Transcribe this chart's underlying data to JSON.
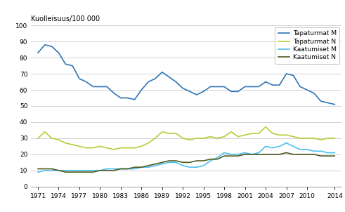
{
  "years": [
    1971,
    1972,
    1973,
    1974,
    1975,
    1976,
    1977,
    1978,
    1979,
    1980,
    1981,
    1982,
    1983,
    1984,
    1985,
    1986,
    1987,
    1988,
    1989,
    1990,
    1991,
    1992,
    1993,
    1994,
    1995,
    1996,
    1997,
    1998,
    1999,
    2000,
    2001,
    2002,
    2003,
    2004,
    2005,
    2006,
    2007,
    2008,
    2009,
    2010,
    2011,
    2012,
    2013,
    2014
  ],
  "tapaturmat_M": [
    83,
    88,
    87,
    83,
    76,
    75,
    67,
    65,
    62,
    62,
    62,
    58,
    55,
    55,
    54,
    60,
    65,
    67,
    71,
    68,
    65,
    61,
    59,
    57,
    59,
    62,
    62,
    62,
    59,
    59,
    62,
    62,
    62,
    65,
    63,
    63,
    70,
    69,
    62,
    60,
    58,
    53,
    52,
    51
  ],
  "tapaturmat_N": [
    30,
    34,
    30,
    29,
    27,
    26,
    25,
    24,
    24,
    25,
    24,
    23,
    24,
    24,
    24,
    25,
    27,
    30,
    34,
    33,
    33,
    30,
    29,
    30,
    30,
    31,
    30,
    31,
    34,
    31,
    32,
    33,
    33,
    37,
    33,
    32,
    32,
    31,
    30,
    30,
    30,
    29,
    30,
    30
  ],
  "kaatumiset_M": [
    9,
    10,
    10,
    10,
    10,
    10,
    10,
    10,
    10,
    10,
    11,
    11,
    11,
    11,
    11,
    12,
    12,
    13,
    14,
    15,
    15,
    13,
    12,
    12,
    13,
    16,
    18,
    21,
    20,
    20,
    21,
    20,
    21,
    25,
    24,
    25,
    27,
    25,
    23,
    23,
    22,
    22,
    21,
    21
  ],
  "kaatumiset_N": [
    11,
    11,
    11,
    10,
    9,
    9,
    9,
    9,
    9,
    10,
    10,
    10,
    11,
    11,
    12,
    12,
    13,
    14,
    15,
    16,
    16,
    15,
    15,
    16,
    16,
    17,
    17,
    19,
    19,
    19,
    20,
    20,
    20,
    20,
    20,
    20,
    21,
    20,
    20,
    20,
    20,
    19,
    19,
    19
  ],
  "color_tapaturmat_M": "#2E75B6",
  "color_tapaturmat_N": "#B8CC3A",
  "color_kaatumiset_M": "#4DBFEF",
  "color_kaatumiset_N": "#4D5A1E",
  "ylabel": "Kuolleisuus/100 000",
  "ylim": [
    0,
    100
  ],
  "yticks": [
    0,
    10,
    20,
    30,
    40,
    50,
    60,
    70,
    80,
    90,
    100
  ],
  "xticks": [
    1971,
    1974,
    1977,
    1980,
    1983,
    1986,
    1989,
    1992,
    1995,
    1998,
    2001,
    2004,
    2007,
    2010,
    2014
  ],
  "legend_labels": [
    "Tapaturmat M",
    "Tapaturmat N",
    "Kaatumiset M",
    "Kaatumiset N"
  ],
  "linewidth": 1.2,
  "background_color": "#ffffff",
  "grid_color": "#c0c0c0"
}
